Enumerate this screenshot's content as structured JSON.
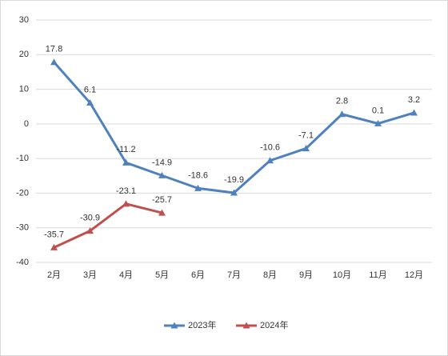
{
  "chart_data": {
    "type": "line",
    "categories": [
      "2月",
      "3月",
      "4月",
      "5月",
      "6月",
      "7月",
      "8月",
      "9月",
      "10月",
      "11月",
      "12月"
    ],
    "series": [
      {
        "name": "2023年",
        "color": "#4f81bd",
        "values": [
          17.8,
          6.1,
          -11.2,
          -14.9,
          -18.6,
          -19.9,
          -10.6,
          -7.1,
          2.8,
          0.1,
          3.2
        ]
      },
      {
        "name": "2024年",
        "color": "#c0504d",
        "values": [
          -35.7,
          -30.9,
          -23.1,
          -25.7,
          null,
          null,
          null,
          null,
          null,
          null,
          null
        ]
      }
    ],
    "ylim": [
      -40,
      30
    ],
    "yticks": [
      -40,
      -30,
      -20,
      -10,
      0,
      10,
      20,
      30
    ],
    "grid": true,
    "legend": "bottom"
  }
}
